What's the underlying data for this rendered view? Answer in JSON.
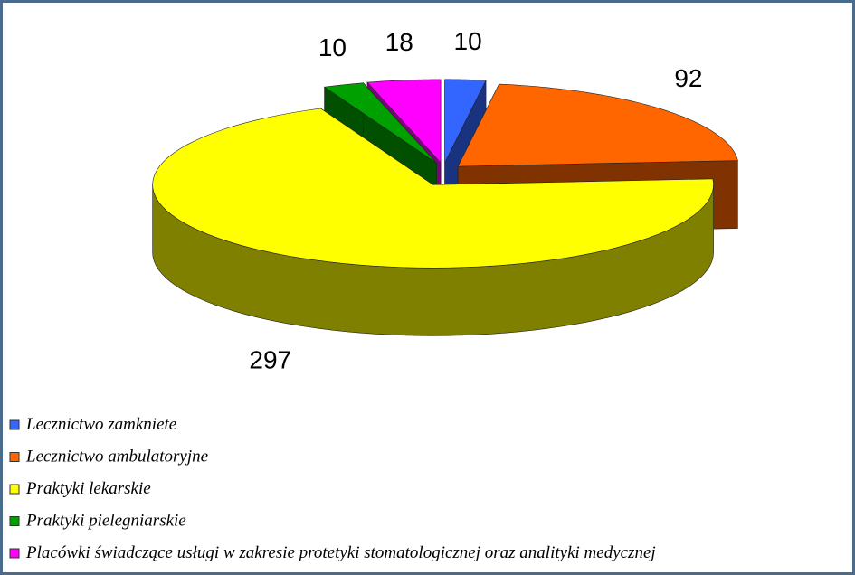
{
  "chart_data": {
    "type": "pie3d",
    "categories": [
      "Lecznictwo zamkniete",
      "Lecznictwo ambulatoryjne",
      "Praktyki lekarskie",
      "Praktyki pielegniarskie",
      "Placówki świadczące usługi w zakresie protetyki stomatologicznej oraz analityki medycznej"
    ],
    "values": [
      10,
      92,
      297,
      10,
      18
    ],
    "colors": [
      "#3366ff",
      "#ff6600",
      "#ffff00",
      "#00a000",
      "#ff00ff"
    ],
    "legend": "bottom"
  }
}
